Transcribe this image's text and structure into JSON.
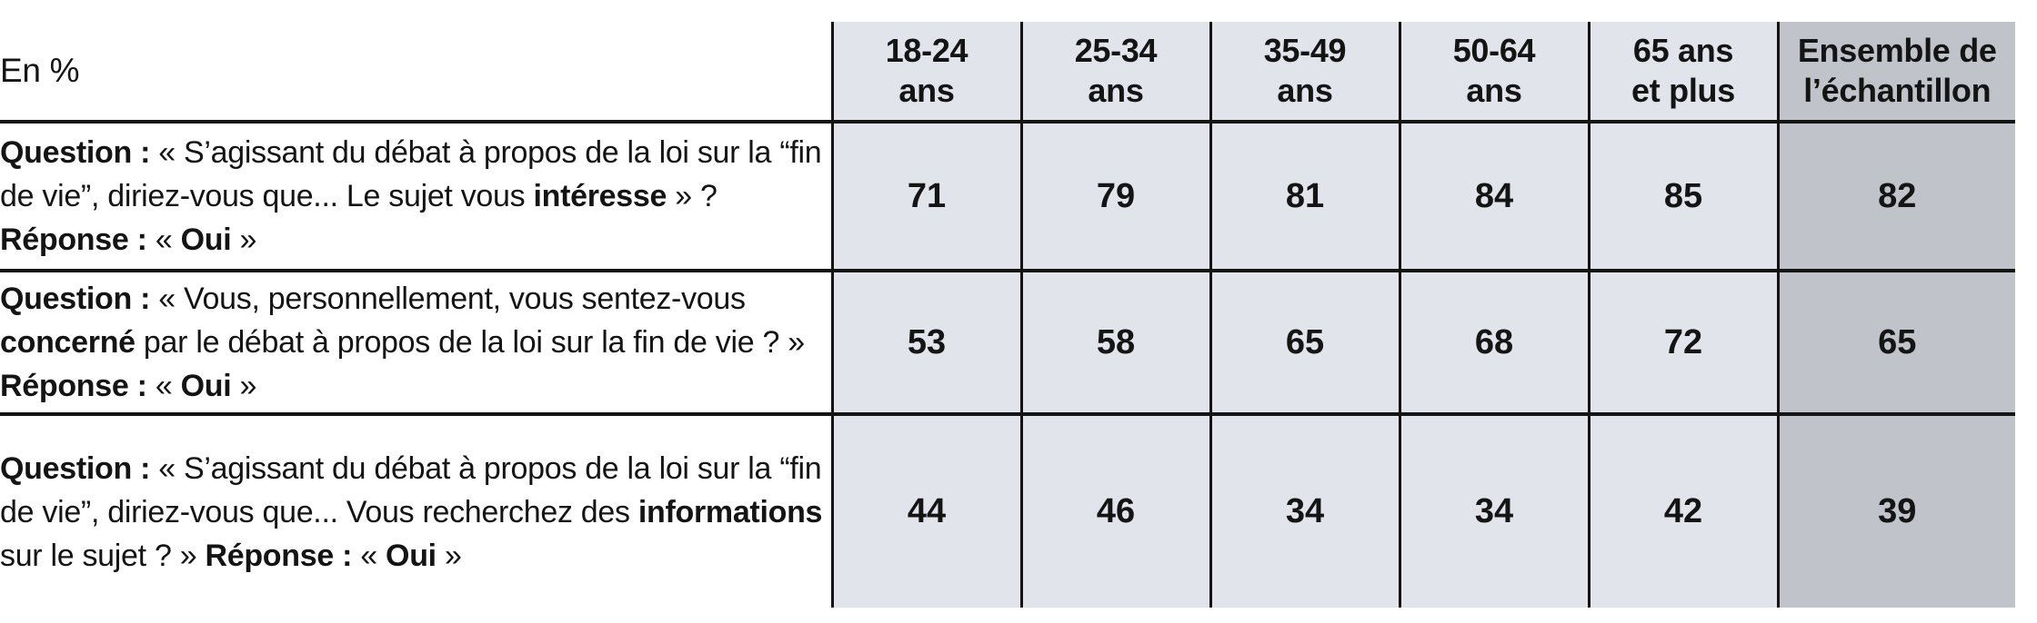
{
  "table": {
    "unit_label": "En %",
    "header_labels": [
      "18-24\nans",
      "25-34\nans",
      "35-49\nans",
      "50-64\nans",
      "65 ans\net plus",
      "Ensemble de\nl’échantillon"
    ],
    "rows": [
      {
        "question_segments": [
          {
            "text": "Question : ",
            "bold": true
          },
          {
            "text": "« S’agissant du débat à propos de la loi sur la “fin de vie”, diriez-vous que... Le sujet vous ",
            "bold": false
          },
          {
            "text": "intéresse",
            "bold": true
          },
          {
            "text": " » ? ",
            "bold": false
          },
          {
            "text": "Réponse : ",
            "bold": true
          },
          {
            "text": "« ",
            "bold": false
          },
          {
            "text": "Oui",
            "bold": true
          },
          {
            "text": " »",
            "bold": false
          }
        ]
      },
      {
        "question_segments": [
          {
            "text": "Question : ",
            "bold": true
          },
          {
            "text": "« Vous, personnellement, vous sentez-vous ",
            "bold": false
          },
          {
            "text": "concerné",
            "bold": true
          },
          {
            "text": " par le débat à propos de la loi sur la fin de vie ? » ",
            "bold": false
          },
          {
            "text": "Réponse : ",
            "bold": true
          },
          {
            "text": "« ",
            "bold": false
          },
          {
            "text": "Oui",
            "bold": true
          },
          {
            "text": " »",
            "bold": false
          }
        ]
      },
      {
        "question_segments": [
          {
            "text": "Question : ",
            "bold": true
          },
          {
            "text": "« S’agissant du débat à propos de la loi sur la “fin de vie”, diriez-vous que... Vous recherchez des ",
            "bold": false
          },
          {
            "text": "informations",
            "bold": true
          },
          {
            "text": " sur le sujet ? » ",
            "bold": false
          },
          {
            "text": "Réponse : ",
            "bold": true
          },
          {
            "text": "« ",
            "bold": false
          },
          {
            "text": "Oui",
            "bold": true
          },
          {
            "text": " »",
            "bold": false
          }
        ]
      }
    ]
  },
  "chart_data": {
    "type": "table",
    "unit": "En %",
    "columns": [
      "18-24 ans",
      "25-34 ans",
      "35-49 ans",
      "50-64 ans",
      "65 ans et plus",
      "Ensemble de l’échantillon"
    ],
    "rows": [
      {
        "question": "Question : « S’agissant du débat à propos de la loi sur la “fin de vie”, diriez-vous que... Le sujet vous intéresse » ? Réponse : « Oui »",
        "values": [
          71,
          79,
          81,
          84,
          85,
          82
        ]
      },
      {
        "question": "Question : « Vous, personnellement, vous sentez-vous concerné par le débat à propos de la loi sur la fin de vie ? » Réponse : « Oui »",
        "values": [
          53,
          58,
          65,
          68,
          72,
          65
        ]
      },
      {
        "question": "Question : « S’agissant du débat à propos de la loi sur la “fin de vie”, diriez-vous que... Vous recherchez des informations sur le sujet ? » Réponse : « Oui »",
        "values": [
          44,
          46,
          34,
          34,
          42,
          39
        ]
      }
    ],
    "layout": {
      "grid": true,
      "legend": false
    },
    "colors": {
      "cell_background": "#e2e4ec",
      "total_column_background": "#c0c3ca",
      "grid_line": "#141414",
      "text": "#141414",
      "question_background": "#ffffff"
    }
  }
}
